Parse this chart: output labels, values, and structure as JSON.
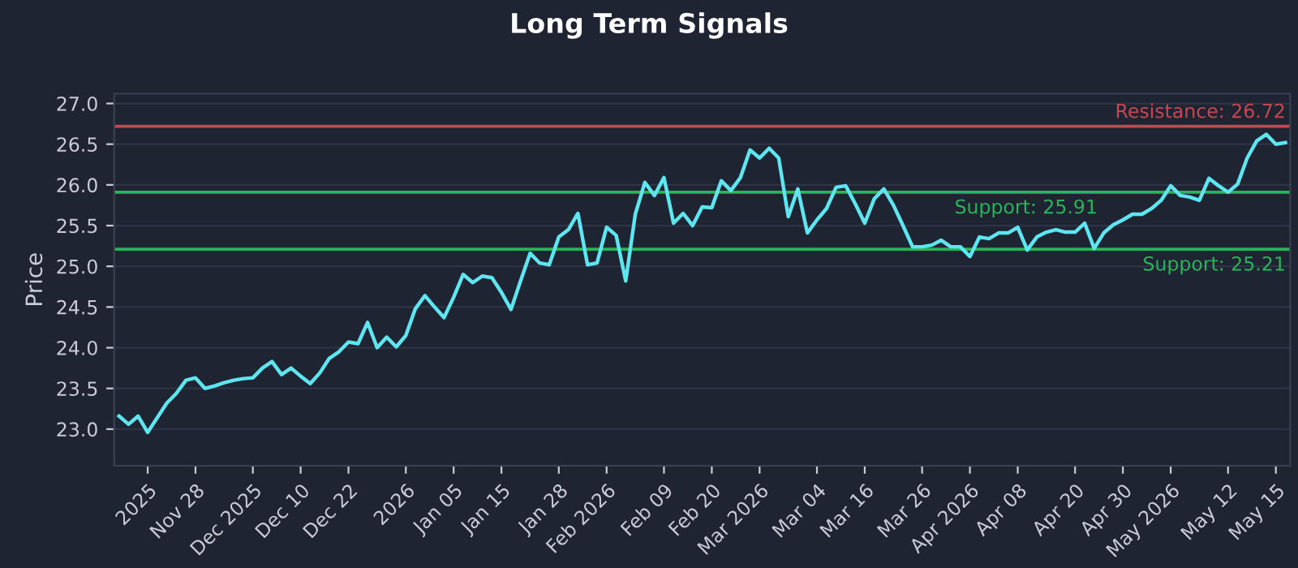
{
  "chart_data": {
    "type": "line",
    "title": "Long Term Signals",
    "ylabel": "Price",
    "categories": [
      null,
      null,
      null,
      "2025",
      null,
      null,
      null,
      null,
      "Nov 28",
      null,
      null,
      null,
      null,
      null,
      "Dec 2025",
      null,
      null,
      null,
      null,
      "Dec 10",
      null,
      null,
      null,
      null,
      "Dec 22",
      null,
      null,
      null,
      null,
      null,
      "2026",
      null,
      null,
      null,
      null,
      "Jan 05",
      null,
      null,
      null,
      null,
      "Jan 15",
      null,
      null,
      null,
      null,
      null,
      "Jan 28",
      null,
      null,
      null,
      null,
      "Feb 2026",
      null,
      null,
      null,
      null,
      null,
      "Feb 09",
      null,
      null,
      null,
      null,
      "Feb 20",
      null,
      null,
      null,
      null,
      "Mar 2026",
      null,
      null,
      null,
      null,
      null,
      "Mar 04",
      null,
      null,
      null,
      null,
      "Mar 16",
      null,
      null,
      null,
      null,
      null,
      "Mar 26",
      null,
      null,
      null,
      null,
      "Apr 2026",
      null,
      null,
      null,
      null,
      "Apr 08",
      null,
      null,
      null,
      null,
      null,
      "Apr 20",
      null,
      null,
      null,
      null,
      "Apr 30",
      null,
      null,
      null,
      null,
      "May 2026",
      null,
      null,
      null,
      null,
      null,
      "May 12",
      null,
      null,
      null,
      null,
      "May 15",
      null
    ],
    "series": [
      {
        "color": "#5ee6f0",
        "values": [
          23.16,
          23.06,
          23.16,
          22.96,
          23.14,
          23.32,
          23.44,
          23.6,
          23.63,
          23.5,
          23.53,
          23.57,
          23.6,
          23.62,
          23.63,
          23.75,
          23.83,
          23.67,
          23.75,
          23.65,
          23.56,
          23.69,
          23.87,
          23.95,
          24.07,
          24.05,
          24.31,
          24.0,
          24.13,
          24.01,
          24.15,
          24.48,
          24.64,
          24.5,
          24.37,
          24.62,
          24.9,
          24.8,
          24.88,
          24.86,
          24.68,
          24.47,
          24.82,
          25.16,
          25.04,
          25.02,
          25.36,
          25.45,
          25.65,
          25.02,
          25.04,
          25.48,
          25.38,
          24.82,
          25.64,
          26.03,
          25.87,
          26.09,
          25.53,
          25.65,
          25.5,
          25.73,
          25.72,
          26.05,
          25.93,
          26.09,
          26.43,
          26.33,
          26.45,
          26.33,
          25.61,
          25.95,
          25.41,
          25.57,
          25.71,
          25.97,
          25.99,
          25.77,
          25.53,
          25.83,
          25.95,
          25.75,
          25.5,
          25.24,
          25.24,
          25.26,
          25.32,
          25.24,
          25.24,
          25.12,
          25.36,
          25.34,
          25.41,
          25.41,
          25.48,
          25.2,
          25.36,
          25.42,
          25.45,
          25.42,
          25.42,
          25.53,
          25.22,
          25.41,
          25.51,
          25.57,
          25.64,
          25.64,
          25.71,
          25.81,
          25.99,
          25.87,
          25.85,
          25.81,
          26.08,
          25.99,
          25.91,
          26.01,
          26.33,
          26.54,
          26.62,
          26.5,
          26.52
        ]
      }
    ],
    "ylim": [
      22.55,
      27.12
    ],
    "yticks": [
      {
        "value": 23,
        "label": "23.0"
      },
      23.5,
      {
        "value": 24,
        "label": "24.0"
      },
      24.5,
      {
        "value": 25,
        "label": "25.0"
      },
      25.5,
      {
        "value": 26,
        "label": "26.0"
      },
      26.5,
      {
        "value": 27,
        "label": "27.0"
      }
    ],
    "grid": "y",
    "ref_lines": [
      {
        "axis": "y",
        "value": 26.72,
        "label": "Resistance: 26.72",
        "color": "#c8464f"
      },
      {
        "axis": "y",
        "value": 25.91,
        "label": "Support: 25.91",
        "color": "#2bb35a"
      },
      {
        "axis": "y",
        "value": 25.21,
        "label": "Support: 25.21",
        "color": "#2bb35a"
      }
    ]
  }
}
